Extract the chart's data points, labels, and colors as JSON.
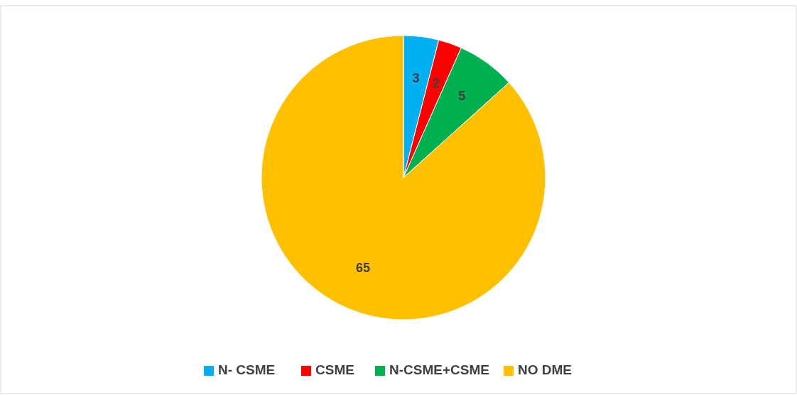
{
  "chart_data": {
    "type": "pie",
    "categories": [
      "N- CSME",
      "CSME",
      "N-CSME+CSME",
      "NO DME"
    ],
    "values": [
      3,
      2,
      5,
      65
    ],
    "colors": [
      "#00b0f0",
      "#ff0000",
      "#00b050",
      "#ffc000"
    ],
    "data_labels": true,
    "legend": "bottom"
  }
}
